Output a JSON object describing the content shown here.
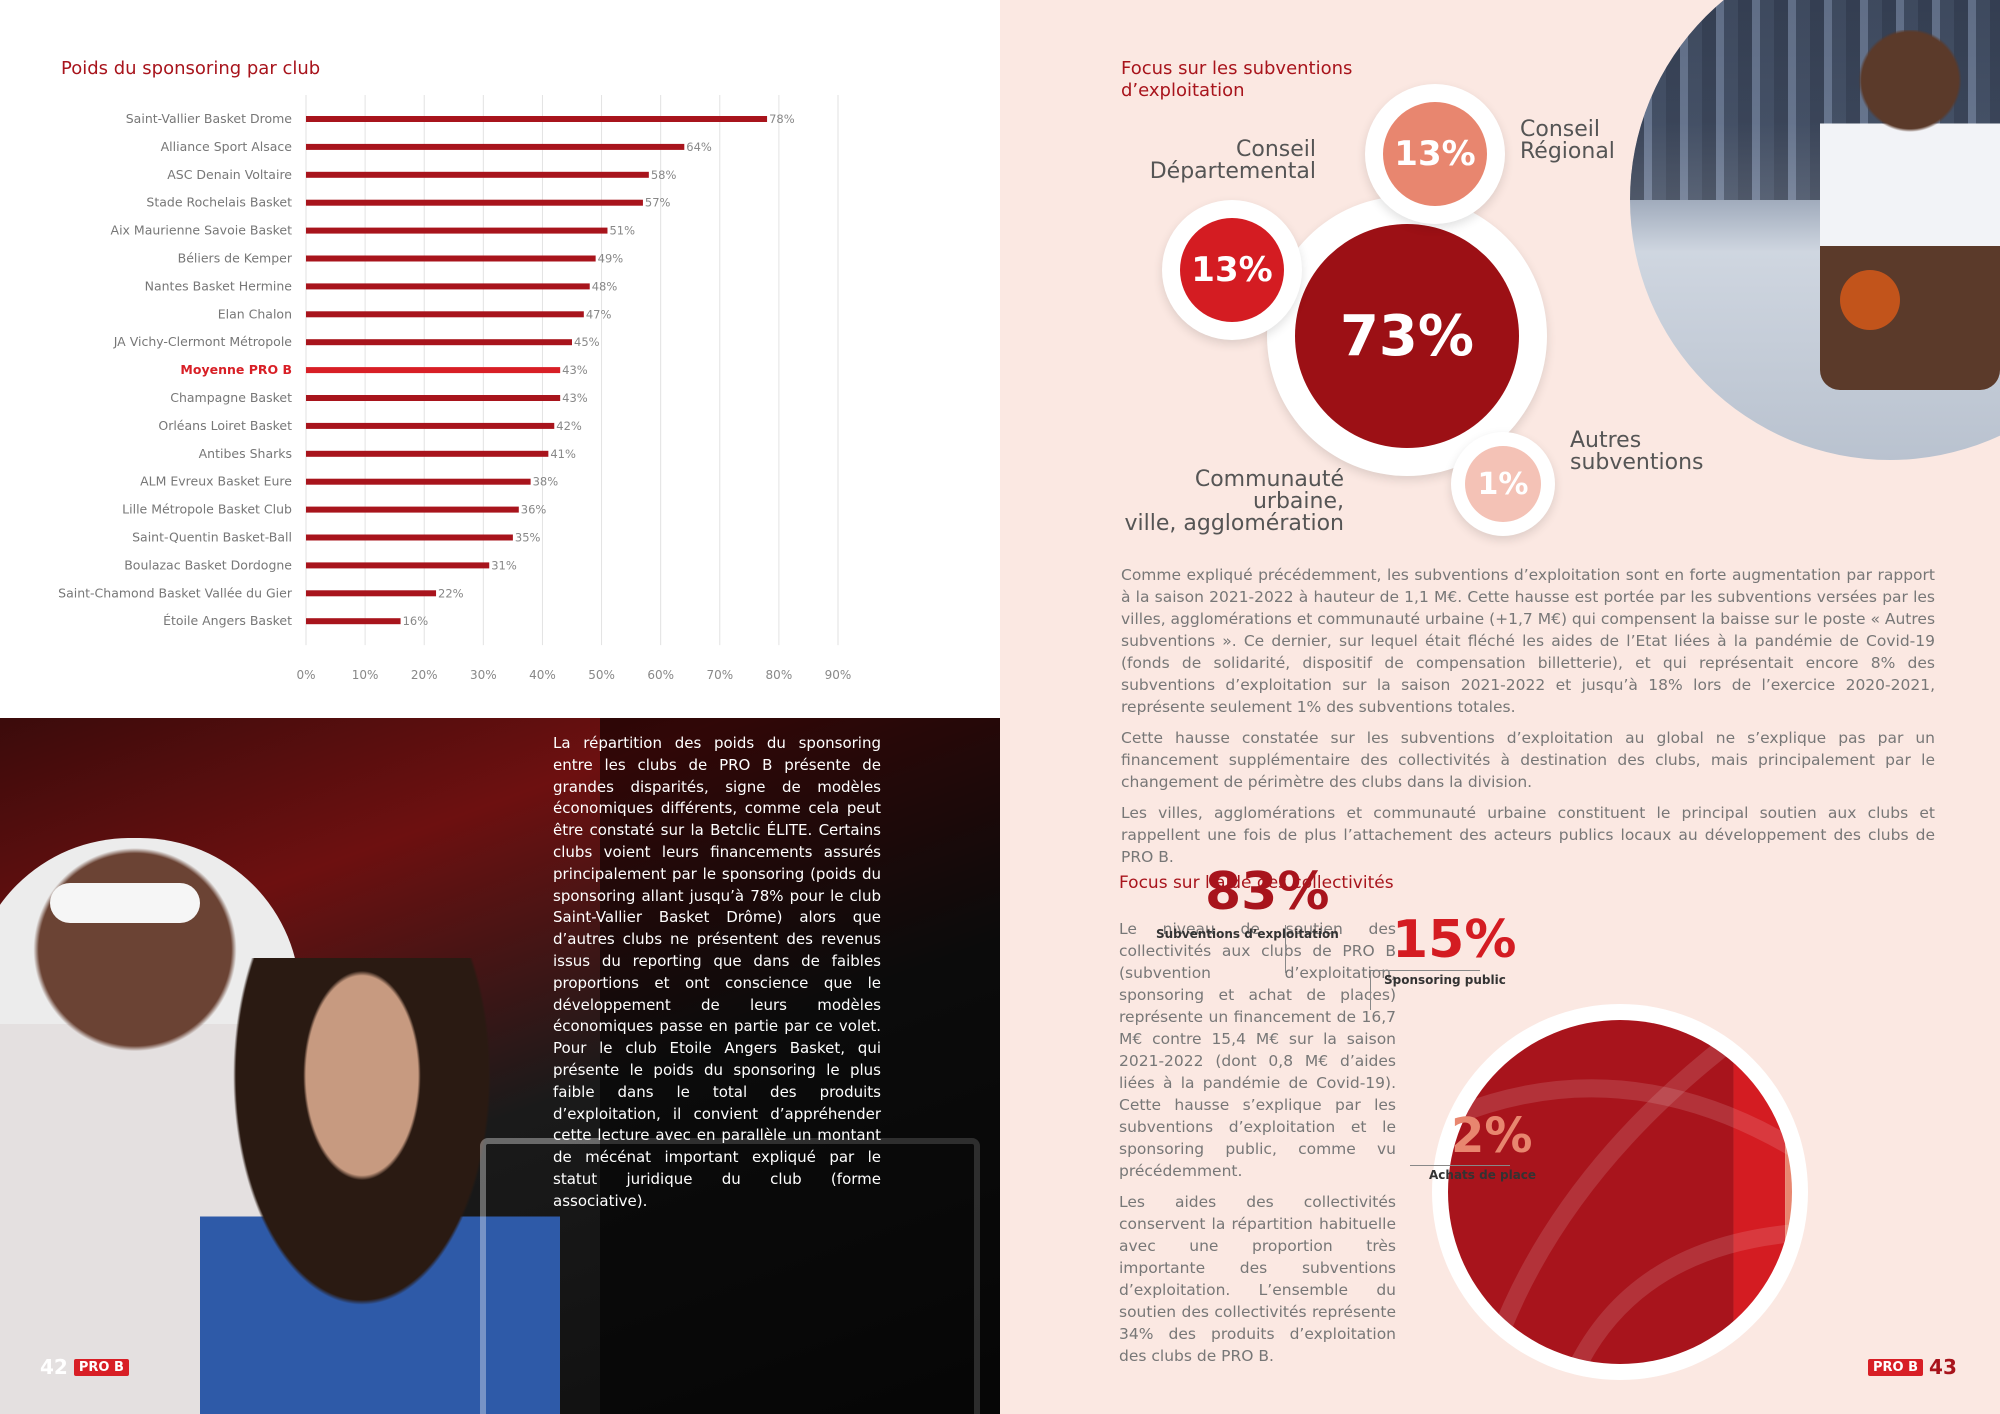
{
  "left_page": {
    "chart_title": "Poids du sponsoring par club",
    "page_number": "42",
    "logo": "PRO B",
    "body_text": "La répartition des poids du sponsoring entre les clubs de PRO B présente de grandes disparités, signe de modèles économiques différents, comme cela peut être constaté sur la Betclic ÉLITE. Certains clubs voient leurs financements assurés principalement par le sponsoring (poids du sponsoring allant jusqu’à 78% pour le club Saint-Vallier Basket Drôme) alors que d’autres clubs ne présentent des revenus issus du reporting que dans de faibles proportions et ont conscience que le développement de leurs modèles économiques passe en partie par ce volet. Pour le club Etoile Angers Basket, qui présente le poids du sponsoring le plus faible dans le total des produits d’exploitation, il convient d’appréhender cette lecture avec en parallèle un montant de mécénat important expliqué par le statut juridique du club (forme associative)."
  },
  "chart_data": {
    "type": "bar",
    "orientation": "horizontal",
    "title": "Poids du sponsoring par club",
    "categories": [
      "Saint-Vallier Basket Drome",
      "Alliance Sport Alsace",
      "ASC Denain Voltaire",
      "Stade Rochelais Basket",
      "Aix Maurienne Savoie Basket",
      "Béliers de Kemper",
      "Nantes Basket Hermine",
      "Elan Chalon",
      "JA Vichy-Clermont Métropole",
      "Moyenne PRO B",
      "Champagne Basket",
      "Orléans Loiret Basket",
      "Antibes Sharks",
      "ALM Evreux Basket Eure",
      "Lille Métropole Basket Club",
      "Saint-Quentin Basket-Ball",
      "Boulazac Basket Dordogne",
      "Saint-Chamond Basket Vallée du Gier",
      "Étoile Angers Basket"
    ],
    "values": [
      78,
      64,
      58,
      57,
      51,
      49,
      48,
      47,
      45,
      43,
      43,
      42,
      41,
      38,
      36,
      35,
      31,
      22,
      16
    ],
    "value_labels": [
      "78%",
      "64%",
      "58%",
      "57%",
      "51%",
      "49%",
      "48%",
      "47%",
      "45%",
      "43%",
      "43%",
      "42%",
      "41%",
      "38%",
      "36%",
      "35%",
      "31%",
      "22%",
      "16%"
    ],
    "highlight_category": "Moyenne PRO B",
    "xlim": [
      0,
      90
    ],
    "x_ticks": [
      "0%",
      "10%",
      "20%",
      "30%",
      "40%",
      "50%",
      "60%",
      "70%",
      "80%",
      "90%"
    ],
    "grid": true,
    "colors": {
      "bar": "#a8141c",
      "highlight": "#d81f26",
      "grid": "#e2e2e2"
    }
  },
  "right_page": {
    "focus1_title_line1": "Focus sur les subventions",
    "focus1_title_line2": "d’exploitation",
    "bubbles": [
      {
        "value": "73%",
        "label_lines": [
          "Communauté urbaine,",
          "ville, agglomération"
        ],
        "color": "#9c1015"
      },
      {
        "value": "13%",
        "label_lines": [
          "Conseil",
          "Départemental"
        ],
        "color": "#d41c22"
      },
      {
        "value": "13%",
        "label_lines": [
          "Conseil",
          "Régional"
        ],
        "color": "#e8866f"
      },
      {
        "value": "1%",
        "label_lines": [
          "Autres",
          "subventions"
        ],
        "color": "#f4c2b6"
      }
    ],
    "paragraphs": [
      "Comme expliqué précédemment, les subventions d’exploitation sont en forte augmentation par rapport à la saison 2021-2022 à hauteur de 1,1 M€. Cette hausse est portée par les subventions versées par les villes, agglomérations et communauté urbaine (+1,7 M€) qui compensent la baisse sur le poste « Autres subventions ». Ce dernier, sur lequel était fléché les aides de l’Etat liées à la pandémie de Covid-19 (fonds de solidarité, dispositif de compensation billetterie), et qui représentait encore 8% des subventions d’exploitation sur la saison 2021-2022 et jusqu’à 18% lors de l’exercice 2020-2021, représente seulement 1% des subventions totales.",
      "Cette hausse constatée sur les subventions d’exploitation au global ne s’explique pas par un financement supplémentaire des collectivités à destination des clubs, mais principalement par le changement de périmètre des clubs dans la division.",
      "Les villes, agglomérations et communauté urbaine constituent le principal soutien aux clubs et rappellent une fois de plus l’attachement des acteurs publics locaux au développement des clubs de PRO B."
    ],
    "focus2_title": "Focus sur l’aide des collectivités",
    "focus2_paragraphs": [
      "Le niveau de soutien des collectivités aux clubs de PRO B (subvention d’exploitation, sponsoring et achat de places) représente un financement de 16,7 M€ contre 15,4 M€ sur la saison 2021-2022 (dont 0,8 M€ d’aides liées à la pandémie de Covid-19). Cette hausse s’explique par les subventions d’exploitation et le sponsoring public, comme vu précédemment.",
      "Les aides des collectivités conservent la répartition habituelle avec une proportion très importante des subventions d’exploitation. L’ensemble du soutien des collectivités représente 34% des produits d’exploitation des clubs de PRO B."
    ],
    "collectivites": [
      {
        "value": "83%",
        "label": "Subventions d’exploitation",
        "share": 83,
        "color": "#a8141c"
      },
      {
        "value": "15%",
        "label": "Sponsoring public",
        "share": 15,
        "color": "#d41c22"
      },
      {
        "value": "2%",
        "label": "Achats de place",
        "share": 2,
        "color": "#e8866f"
      }
    ],
    "page_number": "43",
    "logo": "PRO B"
  }
}
